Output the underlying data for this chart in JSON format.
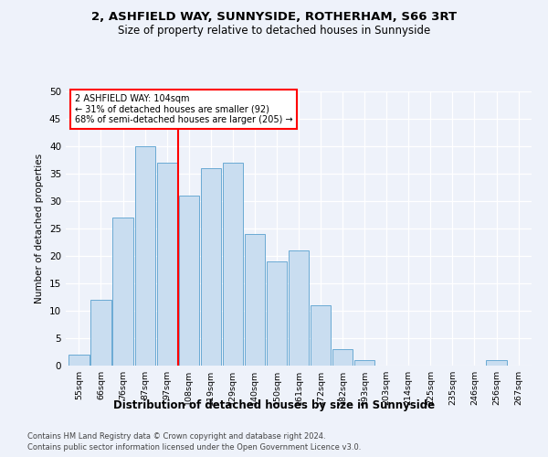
{
  "title1": "2, ASHFIELD WAY, SUNNYSIDE, ROTHERHAM, S66 3RT",
  "title2": "Size of property relative to detached houses in Sunnyside",
  "xlabel": "Distribution of detached houses by size in Sunnyside",
  "ylabel": "Number of detached properties",
  "bin_labels": [
    "55sqm",
    "66sqm",
    "76sqm",
    "87sqm",
    "97sqm",
    "108sqm",
    "119sqm",
    "129sqm",
    "140sqm",
    "150sqm",
    "161sqm",
    "172sqm",
    "182sqm",
    "193sqm",
    "203sqm",
    "214sqm",
    "225sqm",
    "235sqm",
    "246sqm",
    "256sqm",
    "267sqm"
  ],
  "bin_values": [
    2,
    12,
    27,
    40,
    37,
    31,
    36,
    37,
    24,
    19,
    21,
    11,
    3,
    1,
    0,
    0,
    0,
    0,
    0,
    1,
    0
  ],
  "bar_color": "#c9ddf0",
  "bar_edge_color": "#6aaad4",
  "vline_x": 4.5,
  "vline_color": "red",
  "annotation_text": "2 ASHFIELD WAY: 104sqm\n← 31% of detached houses are smaller (92)\n68% of semi-detached houses are larger (205) →",
  "annotation_box_color": "white",
  "annotation_box_edge_color": "red",
  "ylim": [
    0,
    50
  ],
  "yticks": [
    0,
    5,
    10,
    15,
    20,
    25,
    30,
    35,
    40,
    45,
    50
  ],
  "footer1": "Contains HM Land Registry data © Crown copyright and database right 2024.",
  "footer2": "Contains public sector information licensed under the Open Government Licence v3.0.",
  "bg_color": "#eef2fa",
  "plot_bg_color": "#eef2fa"
}
